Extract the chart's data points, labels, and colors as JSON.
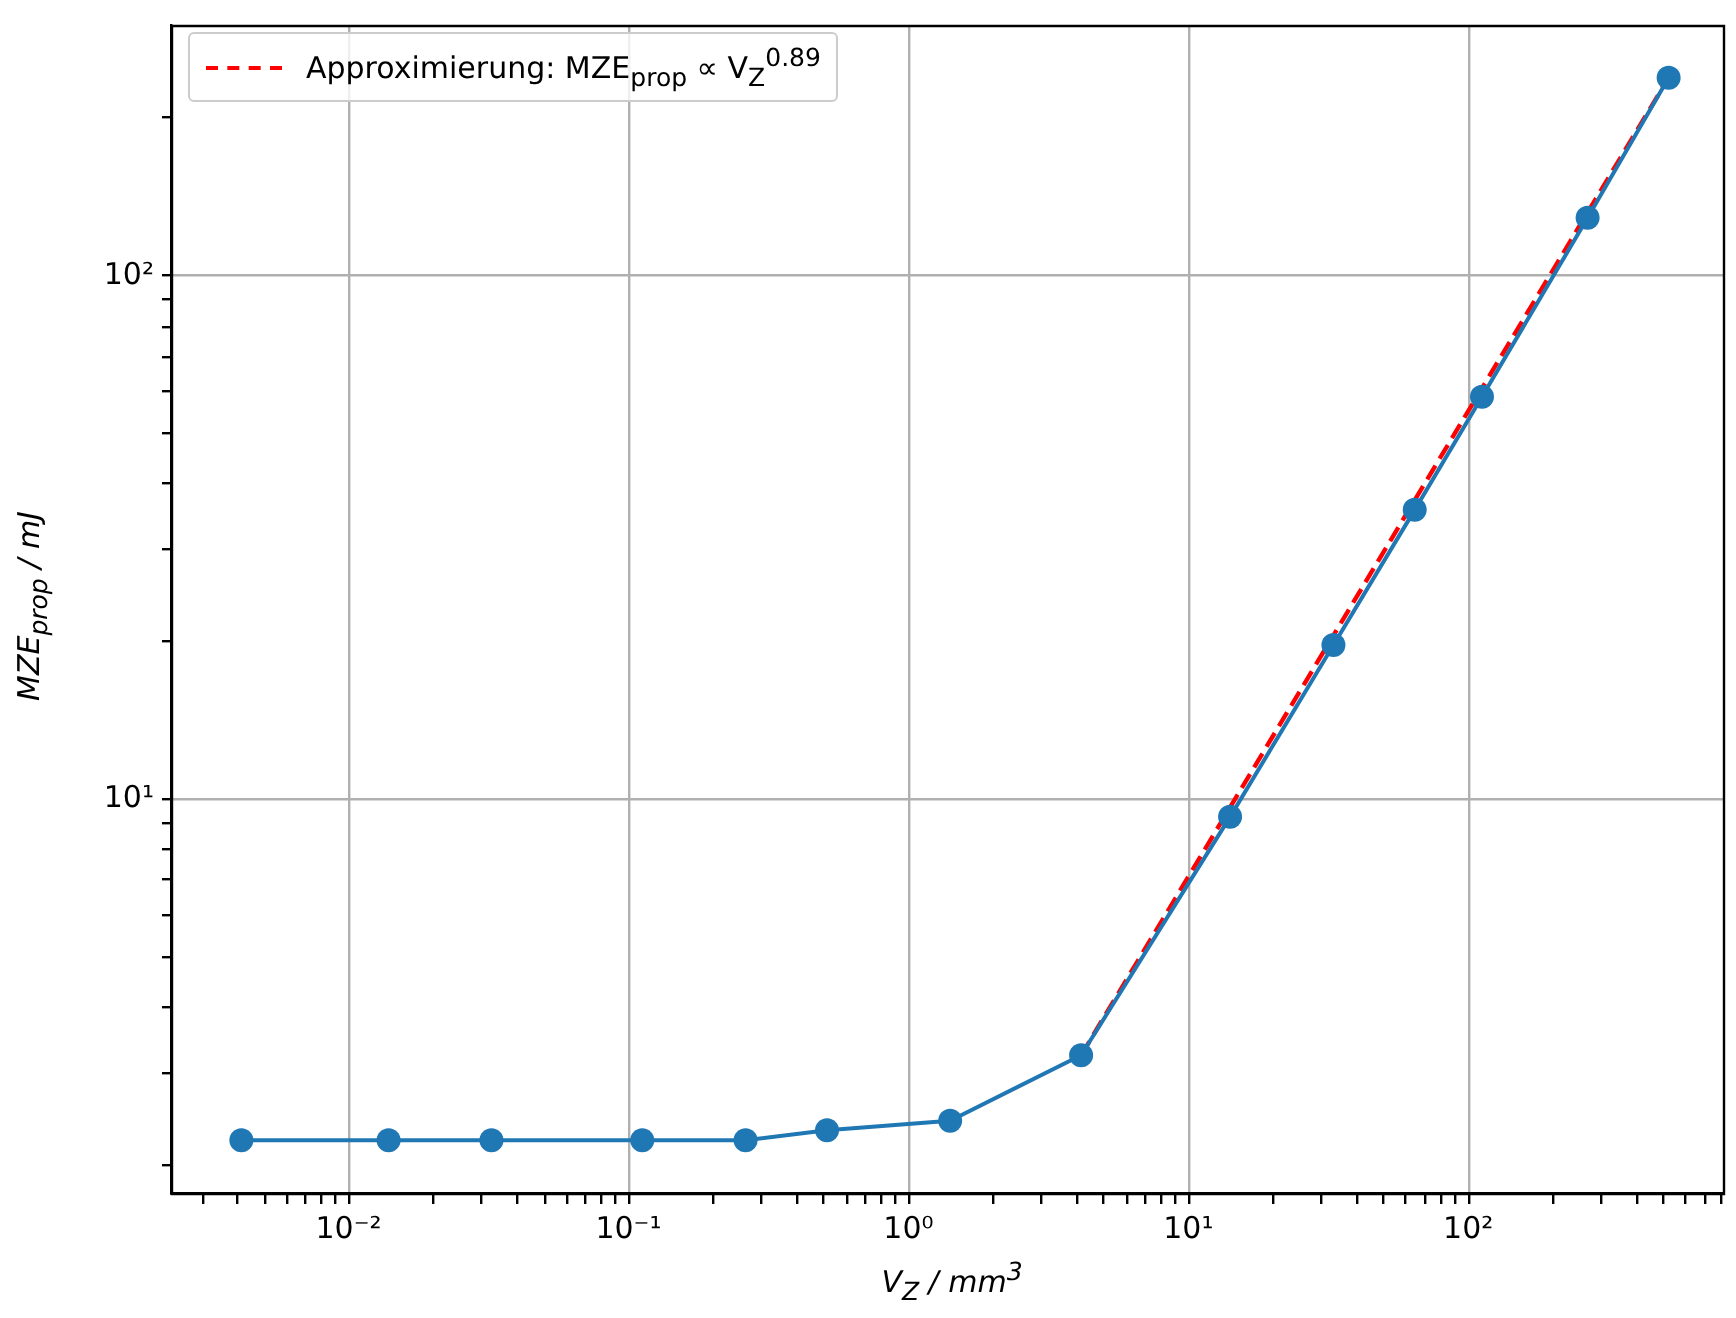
{
  "chart_data": {
    "type": "line",
    "xlabel": "V$_{Z}$ / mm$^{3}$",
    "ylabel": "MZE$_{prop}$ / mJ",
    "log": "xy",
    "grid": true,
    "legend": "top left",
    "xlim": [
      0.00234,
      820
    ],
    "ylim": [
      1.76,
      300
    ],
    "xticks": [
      {
        "value": 0.003,
        "label": null
      },
      {
        "value": 0.004,
        "label": null
      },
      {
        "value": 0.005,
        "label": null
      },
      {
        "value": 0.006,
        "label": null
      },
      {
        "value": 0.007,
        "label": null
      },
      {
        "value": 0.008,
        "label": null
      },
      {
        "value": 0.009,
        "label": null
      },
      {
        "value": 0.01,
        "label": "10⁻²"
      },
      {
        "value": 0.02,
        "label": null
      },
      {
        "value": 0.03,
        "label": null
      },
      {
        "value": 0.04,
        "label": null
      },
      {
        "value": 0.05,
        "label": null
      },
      {
        "value": 0.06,
        "label": null
      },
      {
        "value": 0.07,
        "label": null
      },
      {
        "value": 0.08,
        "label": null
      },
      {
        "value": 0.09,
        "label": null
      },
      {
        "value": 0.1,
        "label": "10⁻¹"
      },
      {
        "value": 0.2,
        "label": null
      },
      {
        "value": 0.3,
        "label": null
      },
      {
        "value": 0.4,
        "label": null
      },
      {
        "value": 0.5,
        "label": null
      },
      {
        "value": 0.6,
        "label": null
      },
      {
        "value": 0.7,
        "label": null
      },
      {
        "value": 0.8,
        "label": null
      },
      {
        "value": 0.9,
        "label": null
      },
      {
        "value": 1,
        "label": "10⁰"
      },
      {
        "value": 2,
        "label": null
      },
      {
        "value": 3,
        "label": null
      },
      {
        "value": 4,
        "label": null
      },
      {
        "value": 5,
        "label": null
      },
      {
        "value": 6,
        "label": null
      },
      {
        "value": 7,
        "label": null
      },
      {
        "value": 8,
        "label": null
      },
      {
        "value": 9,
        "label": null
      },
      {
        "value": 10,
        "label": "10¹"
      },
      {
        "value": 20,
        "label": null
      },
      {
        "value": 30,
        "label": null
      },
      {
        "value": 40,
        "label": null
      },
      {
        "value": 50,
        "label": null
      },
      {
        "value": 60,
        "label": null
      },
      {
        "value": 70,
        "label": null
      },
      {
        "value": 80,
        "label": null
      },
      {
        "value": 90,
        "label": null
      },
      {
        "value": 100,
        "label": "10²"
      },
      {
        "value": 200,
        "label": null
      },
      {
        "value": 300,
        "label": null
      },
      {
        "value": 400,
        "label": null
      },
      {
        "value": 500,
        "label": null
      },
      {
        "value": 600,
        "label": null
      },
      {
        "value": 700,
        "label": null
      },
      {
        "value": 800,
        "label": null
      }
    ],
    "yticks": [
      {
        "value": 2,
        "label": null
      },
      {
        "value": 3,
        "label": null
      },
      {
        "value": 4,
        "label": null
      },
      {
        "value": 5,
        "label": null
      },
      {
        "value": 6,
        "label": null
      },
      {
        "value": 7,
        "label": null
      },
      {
        "value": 8,
        "label": null
      },
      {
        "value": 9,
        "label": null
      },
      {
        "value": 10,
        "label": "10¹"
      },
      {
        "value": 20,
        "label": null
      },
      {
        "value": 30,
        "label": null
      },
      {
        "value": 40,
        "label": null
      },
      {
        "value": 50,
        "label": null
      },
      {
        "value": 60,
        "label": null
      },
      {
        "value": 70,
        "label": null
      },
      {
        "value": 80,
        "label": null
      },
      {
        "value": 90,
        "label": null
      },
      {
        "value": 100,
        "label": "10²"
      },
      {
        "value": 200,
        "label": null
      }
    ],
    "series": [
      {
        "type": "line",
        "color": "#1f77b4",
        "marker": "circle",
        "line_style": "solid",
        "x": [
          0.00414,
          0.0139,
          0.0324,
          0.112,
          0.262,
          0.512,
          1.41,
          4.14,
          14.1,
          33.0,
          64.4,
          112,
          267,
          520
        ],
        "values": [
          2.23,
          2.23,
          2.23,
          2.23,
          2.23,
          2.33,
          2.43,
          3.24,
          9.25,
          19.7,
          35.7,
          58.7,
          129,
          239
        ]
      },
      {
        "type": "line",
        "name": "Approximierung: MZE$_{prop}$ ∝ V$_{Z}$$^{0.89}$",
        "color": "#ff0000",
        "marker": "none",
        "line_style": "dashed",
        "x": [
          4.14,
          520
        ],
        "values": [
          3.24,
          239
        ]
      }
    ]
  }
}
